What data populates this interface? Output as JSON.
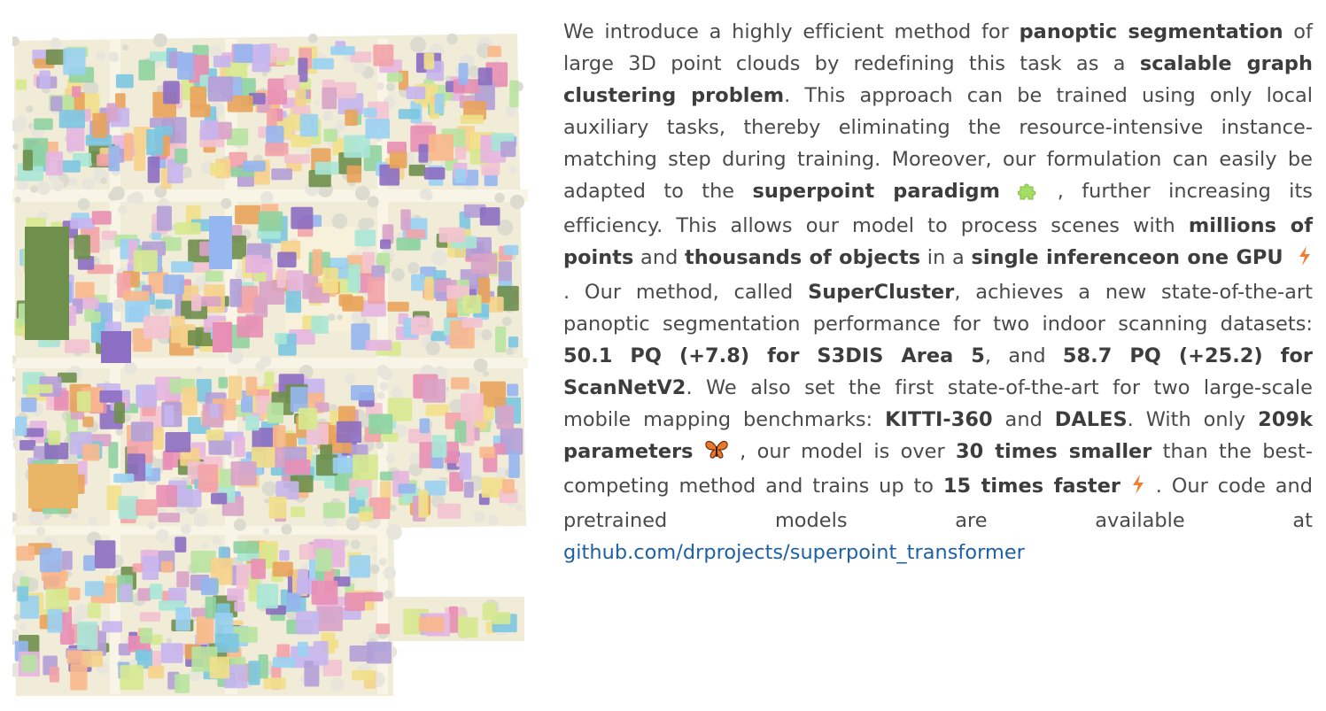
{
  "figure": {
    "description_icon": "city-point-cloud-panoptic-segmentation",
    "colors": [
      "#e6b5e0",
      "#9ad1f2",
      "#f3a3a9",
      "#b8e3a1",
      "#f6d28b",
      "#c7b5ee",
      "#f8b88b",
      "#a9e7d7",
      "#e88fb5",
      "#96b6f0",
      "#d6e98f",
      "#f3c3d1",
      "#8fd3a0",
      "#e9a45c",
      "#b4a0d8",
      "#7cc6e0",
      "#f1e08a",
      "#d9a3c8",
      "#6f8f4d",
      "#8c6ec2"
    ]
  },
  "abstract": {
    "s1": "We introduce a highly efficient method for ",
    "b1": "panoptic segmentation",
    "s2": " of large 3D point clouds by redefining this task as a ",
    "b2": "scalable graph clustering problem",
    "s3": ". This approach can be trained using only local auxiliary tasks, thereby eliminating the resource-intensive instance-matching step during training. Moreover, our formulation can easily be adapted to the ",
    "b3": "superpoint paradigm",
    "s4": " , further increasing its efficiency. This allows our model to process scenes with ",
    "b4": "millions of points",
    "s5": " and ",
    "b5": "thousands of objects",
    "s6": " in a ",
    "b6": "single inferenceon one GPU",
    "s7": " . Our method, called ",
    "b7": "SuperCluster",
    "s8": ", achieves a new state-of-the-art panoptic segmentation performance for two indoor scanning datasets: ",
    "b8": "50.1 PQ (+7.8) for S3DIS Area 5",
    "s9": ", and ",
    "b9": "58.7 PQ (+25.2) for ScanNetV2",
    "s10": ". We also set the first state-of-the-art for two large-scale mobile mapping benchmarks: ",
    "b10": "KITTI-360",
    "s11": " and ",
    "b11": "DALES",
    "s12": ". With only ",
    "b12": "209k parameters",
    "s13": " , our model is over ",
    "b13": "30 times smaller",
    "s14": " than the best-competing method and trains up to ",
    "b14": "15 times faster",
    "s15": " . Our code and pretrained models are available at ",
    "link": "github.com/drprojects/superpoint_transformer",
    "icons": {
      "puzzle": "puzzle-icon",
      "lightning": "lightning-icon",
      "butterfly": "butterfly-icon"
    }
  }
}
